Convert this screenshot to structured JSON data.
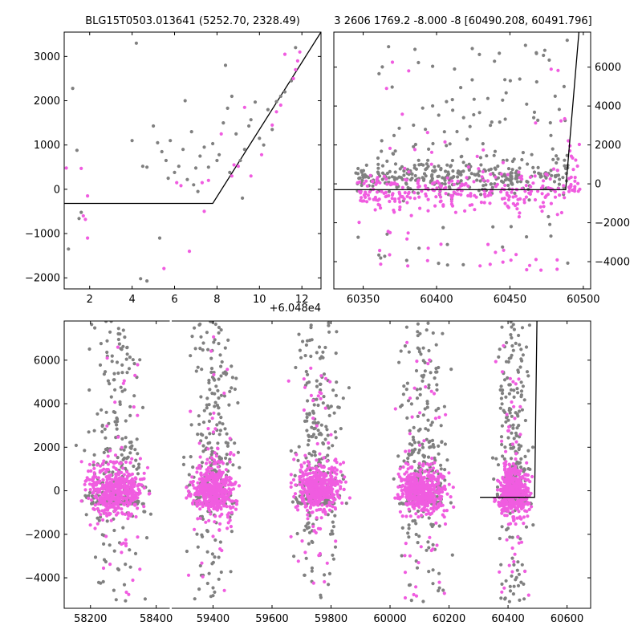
{
  "colors": {
    "gray": "#808080",
    "magenta": "#f05ce0",
    "model": "#000000",
    "background": "#ffffff"
  },
  "chart_data": [
    {
      "id": "zoom_left",
      "type": "scatter",
      "title": "BLG15T0503.013641 (5252.70, 2328.49)",
      "xlim": [
        0.8,
        12.9
      ],
      "ylim": [
        -2250,
        3550
      ],
      "xticks": [
        2,
        4,
        6,
        8,
        10,
        12
      ],
      "xtick_labels": [
        "2",
        "4",
        "6",
        "8",
        "10",
        "12"
      ],
      "yticks": [
        -2000,
        -1000,
        0,
        1000,
        2000,
        3000
      ],
      "ytick_labels": [
        "−2000",
        "−1000",
        "0",
        "1000",
        "2000",
        "3000"
      ],
      "y_axis_side": "left",
      "x_offset_text": "+6.048e4",
      "model_line": {
        "x": [
          0.8,
          7.8,
          12.9
        ],
        "y": [
          -320,
          -320,
          3550
        ]
      },
      "series": [
        {
          "color": "gray",
          "points": [
            [
              1.0,
              -1350
            ],
            [
              1.2,
              2280
            ],
            [
              1.4,
              880
            ],
            [
              1.5,
              -660
            ],
            [
              1.6,
              -520
            ],
            [
              4.4,
              -2020
            ],
            [
              4.7,
              -2070
            ],
            [
              5.3,
              -1100
            ],
            [
              4.5,
              520
            ],
            [
              4.7,
              500
            ],
            [
              5.0,
              1430
            ],
            [
              5.2,
              1050
            ],
            [
              5.4,
              850
            ],
            [
              5.6,
              650
            ],
            [
              5.8,
              1100
            ],
            [
              6.0,
              380
            ],
            [
              6.2,
              520
            ],
            [
              6.4,
              900
            ],
            [
              6.6,
              220
            ],
            [
              6.8,
              1300
            ],
            [
              7.0,
              480
            ],
            [
              7.2,
              750
            ],
            [
              7.4,
              950
            ],
            [
              7.6,
              500
            ],
            [
              7.8,
              1030
            ],
            [
              8.0,
              650
            ],
            [
              8.1,
              780
            ],
            [
              8.3,
              1500
            ],
            [
              8.5,
              1830
            ],
            [
              8.7,
              2100
            ],
            [
              8.9,
              1250
            ],
            [
              9.1,
              650
            ],
            [
              9.3,
              900
            ],
            [
              9.5,
              1430
            ],
            [
              9.6,
              1570
            ],
            [
              9.8,
              1970
            ],
            [
              10.0,
              1150
            ],
            [
              10.2,
              1000
            ],
            [
              10.4,
              1800
            ],
            [
              10.6,
              1350
            ],
            [
              10.8,
              1980
            ],
            [
              11.0,
              2100
            ],
            [
              11.2,
              2200
            ],
            [
              11.5,
              2450
            ],
            [
              11.7,
              3200
            ],
            [
              8.4,
              2800
            ],
            [
              6.5,
              2000
            ],
            [
              4.2,
              3300
            ],
            [
              4.0,
              1100
            ],
            [
              7.1,
              -50
            ],
            [
              9.2,
              -200
            ],
            [
              5.7,
              250
            ],
            [
              6.9,
              100
            ],
            [
              8.6,
              380
            ]
          ]
        },
        {
          "color": "magenta",
          "points": [
            [
              0.9,
              480
            ],
            [
              1.6,
              470
            ],
            [
              1.7,
              -600
            ],
            [
              1.8,
              -680
            ],
            [
              1.9,
              -1100
            ],
            [
              1.9,
              -150
            ],
            [
              5.5,
              -1790
            ],
            [
              6.1,
              150
            ],
            [
              6.3,
              80
            ],
            [
              6.7,
              -1400
            ],
            [
              7.3,
              150
            ],
            [
              7.6,
              200
            ],
            [
              8.2,
              1250
            ],
            [
              8.7,
              300
            ],
            [
              8.8,
              550
            ],
            [
              9.0,
              520
            ],
            [
              9.6,
              300
            ],
            [
              10.1,
              780
            ],
            [
              10.6,
              1450
            ],
            [
              10.8,
              1750
            ],
            [
              11.0,
              1900
            ],
            [
              11.6,
              2500
            ],
            [
              11.7,
              2700
            ],
            [
              11.8,
              2900
            ],
            [
              11.9,
              3100
            ],
            [
              11.2,
              3050
            ],
            [
              7.4,
              -500
            ],
            [
              9.3,
              1850
            ]
          ]
        }
      ]
    },
    {
      "id": "zoom_right",
      "type": "scatter",
      "title": "3 2606 1769.2 -8.000 -8 [60490.208, 60491.796]",
      "xlim": [
        60330,
        60505
      ],
      "ylim": [
        -5400,
        7800
      ],
      "xticks": [
        60350,
        60400,
        60450,
        60500
      ],
      "xtick_labels": [
        "60350",
        "60400",
        "60450",
        "60500"
      ],
      "yticks": [
        -4000,
        -2000,
        0,
        2000,
        4000,
        6000
      ],
      "ytick_labels": [
        "−4000",
        "−2000",
        "0",
        "2000",
        "4000",
        "6000"
      ],
      "y_axis_side": "right",
      "model_line": {
        "x": [
          60330,
          60488,
          60497
        ],
        "y": [
          -300,
          -300,
          7800
        ]
      },
      "clusters": [
        {
          "x": [
            60345,
            60492
          ],
          "y": [
            -300,
            900
          ],
          "n": 300,
          "color": "gray",
          "spread": 1.0
        },
        {
          "x": [
            60360,
            60490
          ],
          "y": [
            1200,
            7600
          ],
          "n": 90,
          "color": "gray",
          "spread": 1.0
        },
        {
          "x": [
            60345,
            60490
          ],
          "y": [
            -4200,
            -1500
          ],
          "n": 20,
          "color": "gray",
          "spread": 1.0
        },
        {
          "x": [
            60345,
            60488
          ],
          "y": [
            -1100,
            300
          ],
          "n": 260,
          "color": "magenta",
          "spread": 1.0
        },
        {
          "x": [
            60345,
            60488
          ],
          "y": [
            -4500,
            -1200
          ],
          "n": 30,
          "color": "magenta",
          "spread": 1.0
        },
        {
          "x": [
            60360,
            60488
          ],
          "y": [
            500,
            6500
          ],
          "n": 20,
          "color": "magenta",
          "spread": 1.0
        },
        {
          "x": [
            60489,
            60498
          ],
          "y": [
            -400,
            3200
          ],
          "n": 25,
          "color": "magenta",
          "spread": 1.0
        }
      ]
    },
    {
      "id": "full_season",
      "type": "scatter",
      "title": "",
      "broken_x_axis": true,
      "segments": [
        {
          "xlim": [
            58120,
            58440
          ],
          "xticks": [
            58200,
            58400
          ],
          "xtick_labels": [
            "58200",
            "58400"
          ]
        },
        {
          "xlim": [
            59260,
            60680
          ],
          "xticks": [
            59400,
            59600,
            59800,
            60000,
            60200,
            60400,
            60600
          ],
          "xtick_labels": [
            "59400",
            "59600",
            "59800",
            "60000",
            "60200",
            "60400",
            "60600"
          ]
        }
      ],
      "ylim": [
        -5400,
        7800
      ],
      "yticks": [
        -4000,
        -2000,
        0,
        2000,
        4000,
        6000
      ],
      "ytick_labels": [
        "−4000",
        "−2000",
        "0",
        "2000",
        "4000",
        "6000"
      ],
      "y_axis_side": "left",
      "model_line": {
        "x": [
          60305,
          60490,
          60498
        ],
        "y": [
          -300,
          -300,
          7800
        ]
      },
      "seasons": [
        {
          "x": [
            58150,
            58400
          ],
          "center": 58275
        },
        {
          "x": [
            59290,
            59510
          ],
          "center": 59400
        },
        {
          "x": [
            59640,
            59870
          ],
          "center": 59755
        },
        {
          "x": [
            59990,
            60230
          ],
          "center": 60110
        },
        {
          "x": [
            60340,
            60495
          ],
          "center": 60420
        }
      ]
    }
  ]
}
